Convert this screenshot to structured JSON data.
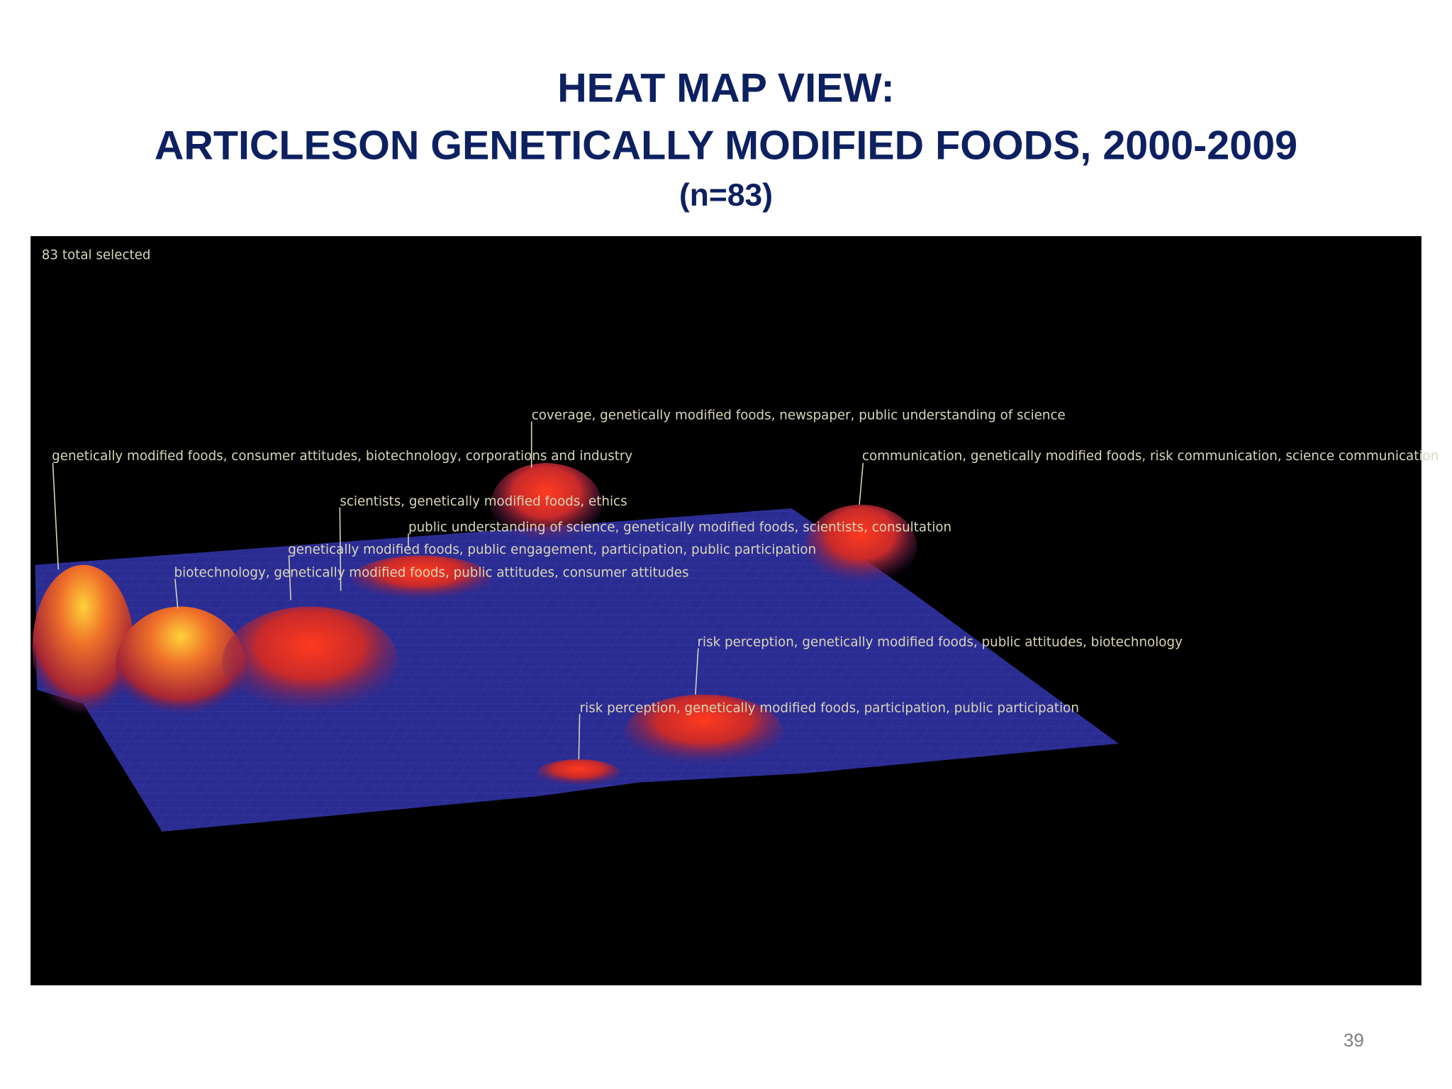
{
  "header": {
    "title_lines": [
      "HEAT MAP VIEW:",
      "ARTICLESON GENETICALLY MODIFIED FOODS, 2000-2009"
    ],
    "subtitle": "(n=83)"
  },
  "panel": {
    "status": "83 total selected",
    "labels": [
      "coverage, genetically modified foods, newspaper, public understanding of science",
      "genetically modified foods, consumer attitudes, biotechnology, corporations and industry",
      "communication, genetically modified foods, risk communication, science communication",
      "scientists, genetically modified foods, ethics",
      "public understanding of science, genetically modified foods, scientists, consultation",
      "genetically modified foods, public engagement, participation, public participation",
      "biotechnology, genetically modified foods, public attitudes, consumer attitudes",
      "risk perception, genetically modified foods, public attitudes, biotechnology",
      "risk perception, genetically modified foods, participation, public participation"
    ]
  },
  "footer": {
    "page_number": "39"
  }
}
